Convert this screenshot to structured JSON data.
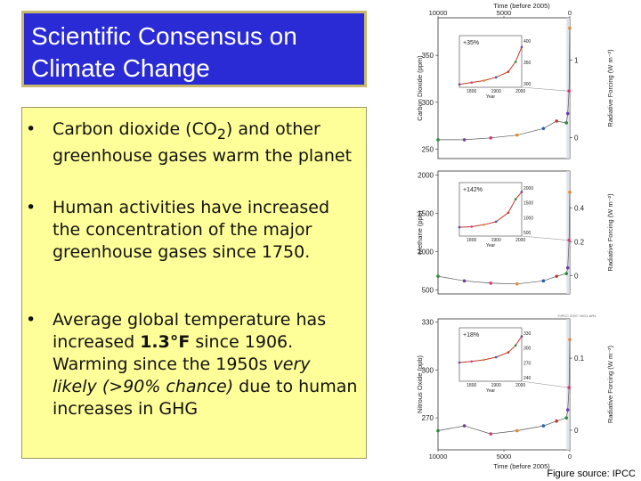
{
  "slide": {
    "title_line1": "Scientific Consensus on",
    "title_line2": "Climate Change",
    "bullet_marker": "•",
    "bullets": [
      [
        "Carbon dioxide (CO",
        "2",
        ") and other greenhouse gases warm the planet"
      ],
      [
        "Human activities have increased the concentration of the major greenhouse gases since 1750."
      ],
      [
        "Average global temperature has increased ",
        "1.3°F",
        " since 1906. Warming since the 1950s ",
        "very likely (>90% chance)",
        " due to human increases in GHG"
      ]
    ],
    "caption": "Figure source: IPCC",
    "watermark": "©IPCC 2007: WG1-AR4"
  },
  "chart_data": [
    {
      "type": "line",
      "ylabel": "Carbon Dioxide (ppm)",
      "y2label": "Radiative Forcing (W m⁻²)",
      "x_top_label": "Time (before 2005)",
      "x_ticks": [
        "10000",
        "5000",
        "0"
      ],
      "y_ticks": [
        "250",
        "300",
        "350"
      ],
      "y2_ticks": [
        "0",
        "1"
      ],
      "ylim": [
        240,
        390
      ],
      "y2_values": [
        0,
        1
      ],
      "inset": {
        "label": "+35%",
        "xlabel": "Year",
        "x_ticks": [
          "1800",
          "1900",
          "2000"
        ],
        "y_ticks": [
          "400",
          "350",
          "300"
        ],
        "ylim": [
          270,
          410
        ],
        "x": [
          1750,
          1800,
          1850,
          1900,
          1950,
          1980,
          2005
        ],
        "values": [
          278,
          283,
          288,
          297,
          312,
          339,
          379
        ]
      },
      "x": [
        10000,
        8000,
        6000,
        4000,
        2000,
        1000,
        255,
        155,
        55,
        0
      ],
      "values": [
        260,
        260,
        262,
        265,
        272,
        280,
        278,
        288,
        312,
        379
      ]
    },
    {
      "type": "line",
      "ylabel": "Methane (ppb)",
      "y2label": "Radiative Forcing (W m⁻²)",
      "x_ticks": [],
      "y_ticks": [
        "500",
        "1000",
        "1500",
        "2000"
      ],
      "y2_ticks": [
        "0",
        "0.2",
        "0.4"
      ],
      "ylim": [
        450,
        2050
      ],
      "y2_values": [
        0,
        0.2,
        0.4
      ],
      "inset": {
        "label": "+142%",
        "xlabel": "Year",
        "x_ticks": [
          "1800",
          "1900",
          "2000"
        ],
        "y_ticks": [
          "2000",
          "1500",
          "1000",
          "500"
        ],
        "ylim": [
          450,
          2050
        ],
        "x": [
          1750,
          1800,
          1850,
          1900,
          1950,
          1980,
          2005
        ],
        "values": [
          715,
          730,
          790,
          880,
          1150,
          1550,
          1774
        ]
      },
      "x": [
        10000,
        8000,
        6000,
        4000,
        2000,
        1000,
        255,
        155,
        55,
        0
      ],
      "values": [
        680,
        620,
        590,
        580,
        620,
        680,
        715,
        790,
        1150,
        1774
      ]
    },
    {
      "type": "line",
      "ylabel": "Nitrous Oxide (ppb)",
      "y2label": "Radiative Forcing (W m⁻²)",
      "x_bottom_label": "Time (before 2005)",
      "x_ticks": [
        "10000",
        "5000",
        "0"
      ],
      "y_ticks": [
        "270",
        "300",
        "330"
      ],
      "y2_ticks": [
        "0",
        "0.1"
      ],
      "ylim": [
        250,
        332
      ],
      "y2_values": [
        0,
        0.1
      ],
      "inset": {
        "label": "+18%",
        "xlabel": "Year",
        "x_ticks": [
          "1800",
          "1900",
          "2000"
        ],
        "y_ticks": [
          "330",
          "300",
          "270",
          "240"
        ],
        "ylim": [
          235,
          335
        ],
        "x": [
          1750,
          1800,
          1850,
          1900,
          1950,
          1980,
          2005
        ],
        "values": [
          270,
          272,
          275,
          280,
          289,
          302,
          319
        ]
      },
      "x": [
        10000,
        8000,
        6000,
        4000,
        2000,
        1000,
        255,
        155,
        55,
        0
      ],
      "values": [
        262,
        265,
        260,
        262,
        265,
        268,
        270,
        275,
        289,
        319
      ]
    }
  ]
}
